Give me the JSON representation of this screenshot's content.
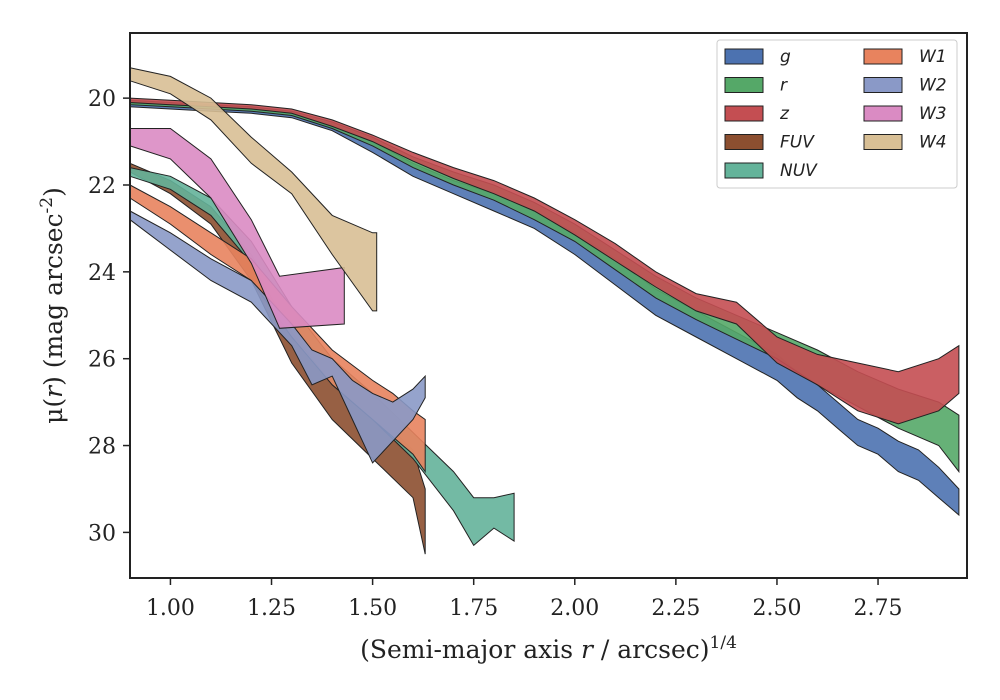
{
  "chart_data": {
    "type": "area",
    "xlabel": "(Semi-major axis r / arcsec)^{1/4}",
    "ylabel": "μ(r) (mag arcsec^{-2})",
    "xlim": [
      0.9,
      2.97
    ],
    "ylim": [
      31.05,
      18.5
    ],
    "y_inverted": true,
    "x_ticks": [
      "1.00",
      "1.25",
      "1.50",
      "1.75",
      "2.00",
      "2.25",
      "2.50",
      "2.75"
    ],
    "y_ticks": [
      "20",
      "22",
      "24",
      "26",
      "28",
      "30"
    ],
    "legend_position": "top-right",
    "series": [
      {
        "name": "g",
        "color": "#4c72b0",
        "x": [
          0.9,
          1.0,
          1.1,
          1.2,
          1.3,
          1.4,
          1.5,
          1.6,
          1.7,
          1.8,
          1.9,
          2.0,
          2.1,
          2.2,
          2.3,
          2.4,
          2.5,
          2.55,
          2.6,
          2.65,
          2.7,
          2.75,
          2.8,
          2.85,
          2.9,
          2.95
        ],
        "lower": [
          20.1,
          20.15,
          20.2,
          20.25,
          20.35,
          20.6,
          21.0,
          21.5,
          21.9,
          22.2,
          22.6,
          23.1,
          23.7,
          24.4,
          24.9,
          25.4,
          25.9,
          26.3,
          26.6,
          27.0,
          27.4,
          27.6,
          27.9,
          28.1,
          28.5,
          29.0
        ],
        "upper": [
          20.2,
          20.25,
          20.3,
          20.35,
          20.45,
          20.75,
          21.25,
          21.8,
          22.2,
          22.6,
          23.0,
          23.6,
          24.3,
          25.0,
          25.5,
          26.0,
          26.5,
          26.9,
          27.2,
          27.6,
          28.0,
          28.2,
          28.6,
          28.8,
          29.2,
          29.6
        ]
      },
      {
        "name": "r",
        "color": "#55a868",
        "x": [
          0.9,
          1.0,
          1.1,
          1.2,
          1.3,
          1.4,
          1.5,
          1.6,
          1.7,
          1.8,
          1.9,
          2.0,
          2.1,
          2.2,
          2.3,
          2.4,
          2.5,
          2.6,
          2.7,
          2.8,
          2.9,
          2.95
        ],
        "lower": [
          20.05,
          20.1,
          20.15,
          20.2,
          20.3,
          20.55,
          20.9,
          21.35,
          21.7,
          22.0,
          22.4,
          22.9,
          23.5,
          24.1,
          24.6,
          25.0,
          25.4,
          25.8,
          26.3,
          26.7,
          27.0,
          27.3
        ],
        "upper": [
          20.15,
          20.2,
          20.25,
          20.3,
          20.4,
          20.7,
          21.1,
          21.6,
          22.0,
          22.35,
          22.8,
          23.3,
          23.95,
          24.6,
          25.1,
          25.55,
          26.0,
          26.6,
          27.1,
          27.6,
          28.0,
          28.6
        ]
      },
      {
        "name": "z",
        "color": "#c44e52",
        "x": [
          0.9,
          1.0,
          1.1,
          1.2,
          1.3,
          1.4,
          1.5,
          1.6,
          1.7,
          1.8,
          1.9,
          2.0,
          2.1,
          2.2,
          2.3,
          2.4,
          2.5,
          2.6,
          2.7,
          2.8,
          2.9,
          2.95
        ],
        "lower": [
          20.0,
          20.05,
          20.1,
          20.15,
          20.25,
          20.5,
          20.85,
          21.25,
          21.6,
          21.9,
          22.3,
          22.8,
          23.35,
          24.0,
          24.5,
          24.7,
          25.5,
          25.9,
          26.1,
          26.3,
          26.0,
          25.7
        ],
        "upper": [
          20.1,
          20.15,
          20.2,
          20.25,
          20.35,
          20.65,
          21.0,
          21.45,
          21.85,
          22.2,
          22.6,
          23.15,
          23.75,
          24.35,
          24.9,
          25.2,
          26.1,
          26.6,
          27.2,
          27.5,
          27.2,
          26.8
        ]
      },
      {
        "name": "FUV",
        "color": "#8c4f30",
        "x": [
          0.9,
          1.0,
          1.1,
          1.2,
          1.3,
          1.4,
          1.5,
          1.6,
          1.63
        ],
        "lower": [
          21.5,
          21.9,
          22.5,
          23.6,
          25.2,
          26.3,
          27.2,
          28.1,
          29.0
        ],
        "upper": [
          21.7,
          22.2,
          22.9,
          24.2,
          26.1,
          27.4,
          28.3,
          29.2,
          30.5
        ]
      },
      {
        "name": "NUV",
        "color": "#64b39a",
        "x": [
          0.9,
          1.0,
          1.1,
          1.2,
          1.3,
          1.4,
          1.5,
          1.6,
          1.7,
          1.75,
          1.8,
          1.85
        ],
        "lower": [
          21.6,
          21.8,
          22.3,
          23.3,
          24.8,
          26.0,
          26.8,
          27.7,
          28.6,
          29.2,
          29.2,
          29.1
        ],
        "upper": [
          21.8,
          22.1,
          22.7,
          23.8,
          25.4,
          26.6,
          27.4,
          28.3,
          29.5,
          30.3,
          29.9,
          30.2
        ]
      },
      {
        "name": "W1",
        "color": "#e8835e",
        "x": [
          0.9,
          1.0,
          1.1,
          1.2,
          1.3,
          1.4,
          1.5,
          1.55,
          1.6,
          1.63
        ],
        "lower": [
          22.0,
          22.5,
          23.1,
          23.7,
          24.8,
          25.8,
          26.5,
          26.8,
          27.2,
          27.4
        ],
        "upper": [
          22.3,
          22.9,
          23.6,
          24.2,
          25.5,
          26.6,
          27.4,
          27.8,
          28.2,
          28.6
        ]
      },
      {
        "name": "W2",
        "color": "#8a99c7",
        "x": [
          0.9,
          1.0,
          1.1,
          1.2,
          1.3,
          1.35,
          1.4,
          1.45,
          1.5,
          1.55,
          1.6,
          1.63
        ],
        "lower": [
          22.6,
          23.1,
          23.7,
          24.2,
          25.2,
          25.8,
          26.0,
          26.5,
          26.8,
          27.0,
          26.7,
          26.4
        ],
        "upper": [
          22.8,
          23.5,
          24.2,
          24.7,
          25.7,
          26.6,
          26.4,
          27.4,
          28.4,
          27.9,
          27.4,
          26.9
        ]
      },
      {
        "name": "W3",
        "color": "#da8bc3",
        "x": [
          0.9,
          1.0,
          1.1,
          1.2,
          1.27,
          1.43
        ],
        "lower": [
          20.7,
          20.7,
          21.4,
          22.8,
          24.1,
          23.9
        ],
        "upper": [
          21.1,
          21.4,
          22.3,
          23.8,
          25.3,
          25.2
        ]
      },
      {
        "name": "W4",
        "color": "#d8bf95",
        "x": [
          0.9,
          1.0,
          1.1,
          1.2,
          1.3,
          1.4,
          1.5,
          1.51
        ],
        "lower": [
          19.3,
          19.5,
          20.0,
          20.9,
          21.7,
          22.7,
          23.1,
          23.1
        ],
        "upper": [
          19.6,
          19.9,
          20.5,
          21.5,
          22.2,
          23.6,
          24.9,
          24.9
        ]
      }
    ]
  }
}
